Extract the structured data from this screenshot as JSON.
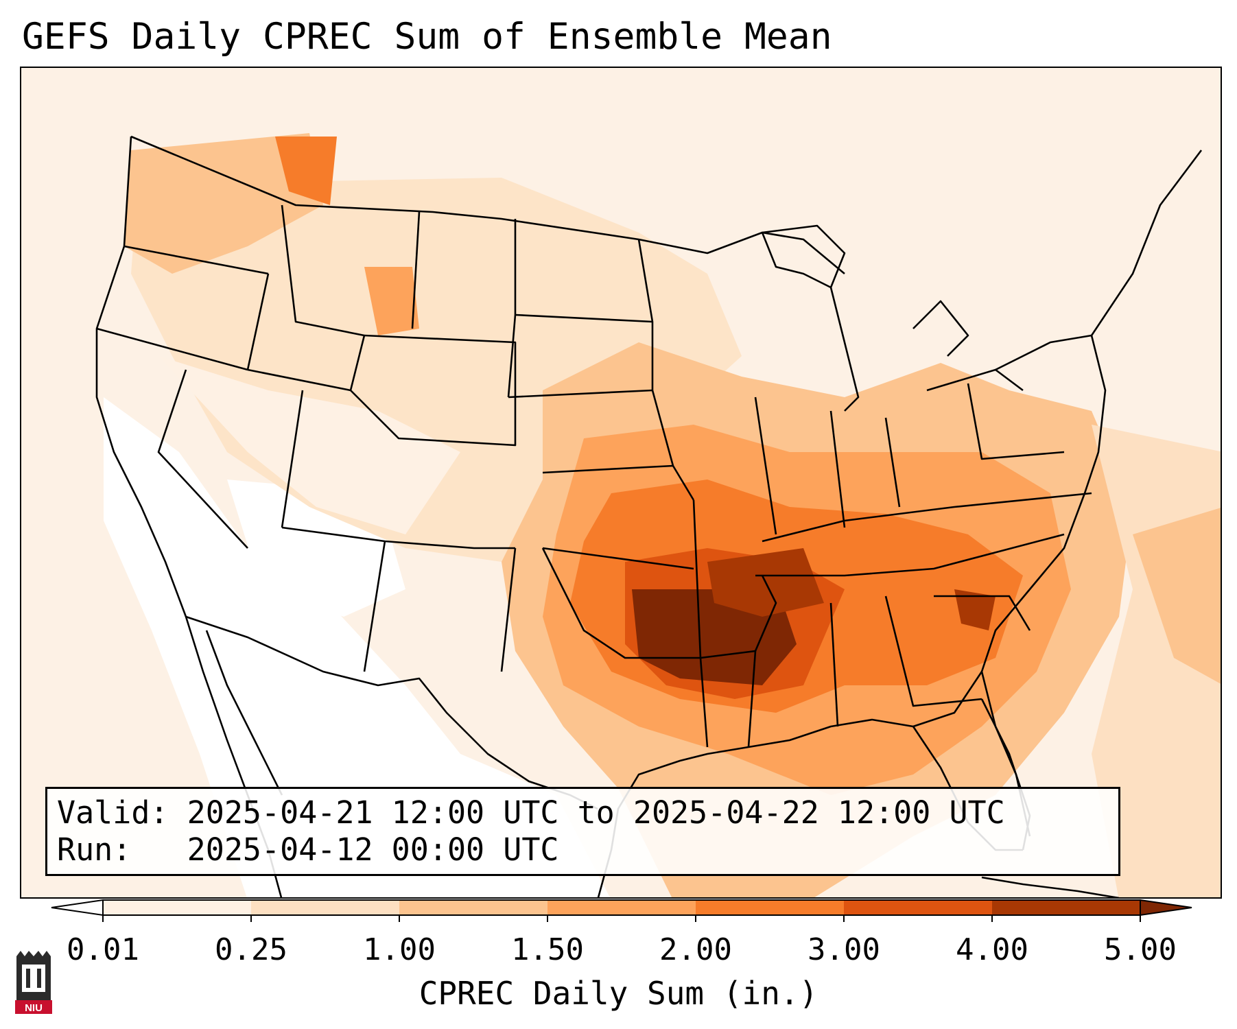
{
  "title": "GEFS Daily CPREC Sum of Ensemble Mean",
  "info": {
    "valid_label": "Valid:",
    "valid_value": "2025-04-21 12:00 UTC to 2025-04-22 12:00 UTC",
    "run_label": "Run:",
    "run_value": "2025-04-12 00:00 UTC"
  },
  "colorbar": {
    "label": "CPREC Daily Sum (in.)",
    "ticks": [
      "0.01",
      "0.25",
      "1.00",
      "1.50",
      "2.00",
      "3.00",
      "4.00",
      "5.00"
    ],
    "colors": [
      "#fef1e4",
      "#fde0c2",
      "#fcc48f",
      "#fda35b",
      "#f67c2a",
      "#de5410",
      "#a83804"
    ],
    "under_color": "#ffffff",
    "over_color": "#7f2704"
  },
  "logo": {
    "icon": "niu-logo-icon",
    "text": "NIU"
  }
}
